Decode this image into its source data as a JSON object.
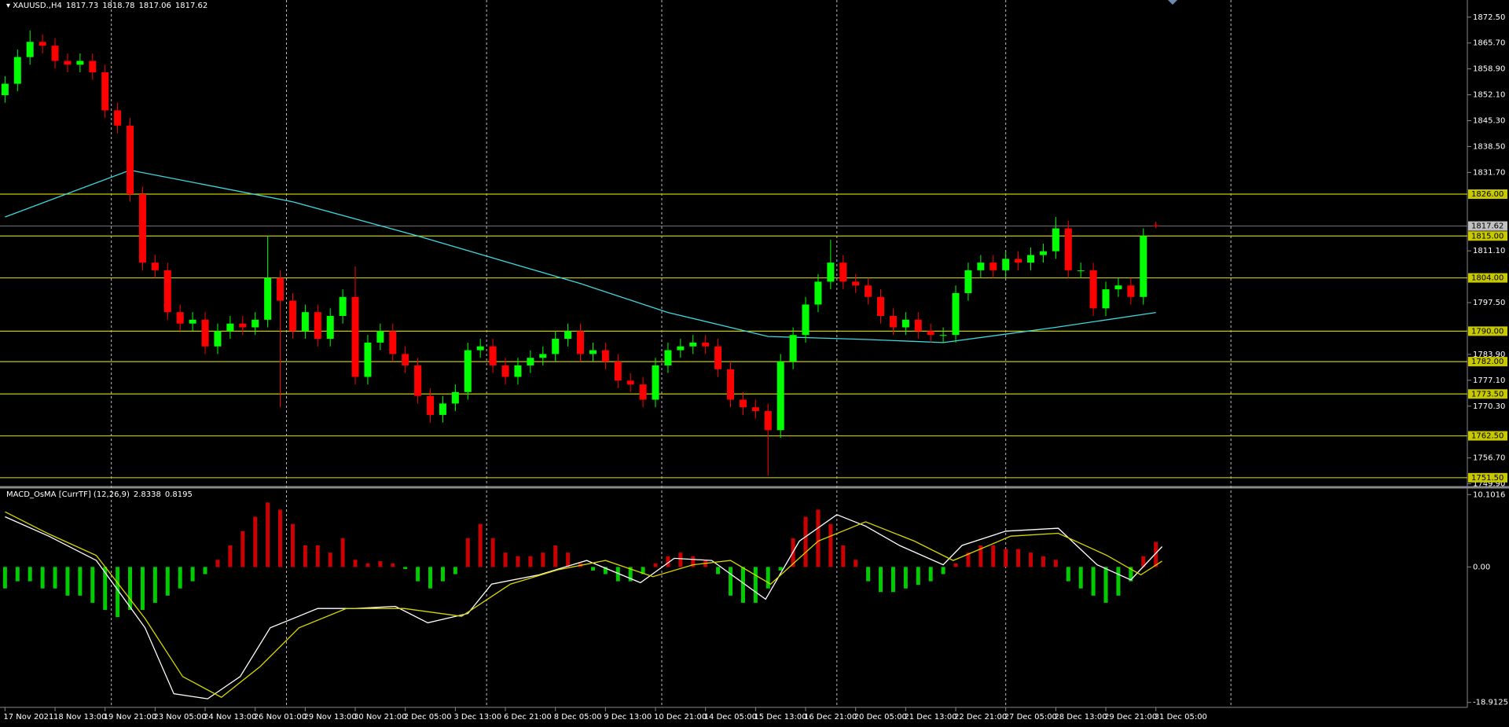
{
  "chart_data": [
    {
      "type": "candlestick",
      "title": "XAUUSD.,H4",
      "up_color": "#00ff00",
      "down_color": "#ff0000",
      "xlim": [
        -0.4,
        116.9
      ],
      "ylim": [
        1749.4,
        1877.0
      ],
      "vgrid": [
        8.5,
        22.5,
        38.5,
        52.5,
        66.5,
        80,
        98
      ],
      "xticks": [
        {
          "value": 0,
          "label": "17 Nov 2021"
        },
        {
          "value": 4,
          "label": "18 Nov 13:00"
        },
        {
          "value": 8,
          "label": "19 Nov 21:00"
        },
        {
          "value": 12,
          "label": "23 Nov 05:00"
        },
        {
          "value": 16,
          "label": "24 Nov 13:00"
        },
        {
          "value": 20,
          "label": "26 Nov 01:00"
        },
        {
          "value": 24,
          "label": "29 Nov 13:00"
        },
        {
          "value": 28,
          "label": "30 Nov 21:00"
        },
        {
          "value": 32,
          "label": "2 Dec 05:00"
        },
        {
          "value": 36,
          "label": "3 Dec 13:00"
        },
        {
          "value": 40,
          "label": "6 Dec 21:00"
        },
        {
          "value": 44,
          "label": "8 Dec 05:00"
        },
        {
          "value": 48,
          "label": "9 Dec 13:00"
        },
        {
          "value": 52,
          "label": "10 Dec 21:00"
        },
        {
          "value": 56,
          "label": "14 Dec 05:00"
        },
        {
          "value": 60,
          "label": "15 Dec 13:00"
        },
        {
          "value": 64,
          "label": "16 Dec 21:00"
        },
        {
          "value": 68,
          "label": "20 Dec 05:00"
        },
        {
          "value": 72,
          "label": "21 Dec 13:00"
        },
        {
          "value": 76,
          "label": "22 Dec 21:00"
        },
        {
          "value": 80,
          "label": "27 Dec 05:00"
        },
        {
          "value": 84,
          "label": "28 Dec 13:00"
        },
        {
          "value": 88,
          "label": "29 Dec 21:00"
        },
        {
          "value": 92,
          "label": "31 Dec 05:00"
        }
      ],
      "yticks": [
        {
          "value": 1872.5,
          "label": "1872.50"
        },
        {
          "value": 1865.7,
          "label": "1865.70"
        },
        {
          "value": 1858.9,
          "label": "1858.90"
        },
        {
          "value": 1852.1,
          "label": "1852.10"
        },
        {
          "value": 1845.3,
          "label": "1845.30"
        },
        {
          "value": 1838.5,
          "label": "1838.50"
        },
        {
          "value": 1831.7,
          "label": "1831.70"
        },
        {
          "value": 1811.1,
          "label": "1811.10"
        },
        {
          "value": 1797.5,
          "label": "1797.50"
        },
        {
          "value": 1783.9,
          "label": "1783.90"
        },
        {
          "value": 1777.1,
          "label": "1777.10"
        },
        {
          "value": 1770.3,
          "label": "1770.30"
        },
        {
          "value": 1756.7,
          "label": "1756.70"
        },
        {
          "value": 1749.9,
          "label": "1749.90"
        }
      ],
      "levels": [
        {
          "value": 1826,
          "label": "1826.00"
        },
        {
          "value": 1815,
          "label": "1815.00"
        },
        {
          "value": 1804,
          "label": "1804.00"
        },
        {
          "value": 1790,
          "label": "1790.00"
        },
        {
          "value": 1782,
          "label": "1782.00"
        },
        {
          "value": 1773.5,
          "label": "1773.50"
        },
        {
          "value": 1762.5,
          "label": "1762.50"
        },
        {
          "value": 1751.5,
          "label": "1751.50"
        }
      ],
      "level_color": "#c8c800",
      "open": [
        1852,
        1855,
        1862,
        1866,
        1865,
        1861,
        1860,
        1861,
        1858,
        1848,
        1844,
        1826,
        1808,
        1806,
        1795,
        1792,
        1793,
        1786,
        1790,
        1792,
        1791,
        1793,
        1804,
        1798,
        1790,
        1795,
        1788,
        1794,
        1799,
        1778,
        1787,
        1790,
        1784,
        1781,
        1773,
        1768,
        1771,
        1774,
        1785,
        1786,
        1781,
        1778,
        1781,
        1783,
        1784,
        1788,
        1790,
        1784,
        1785,
        1782,
        1777,
        1776,
        1772,
        1781,
        1785,
        1786,
        1787,
        1786,
        1780,
        1772,
        1770,
        1769,
        1764,
        1782,
        1789,
        1797,
        1803,
        1808,
        1803,
        1802,
        1799,
        1794,
        1791,
        1793,
        1790,
        1789,
        1789,
        1800,
        1806,
        1808,
        1806,
        1809,
        1808,
        1810,
        1811,
        1817,
        1806,
        1806,
        1796,
        1801,
        1802,
        1799,
        1817.73
      ],
      "high": [
        1857,
        1864,
        1869,
        1868,
        1867,
        1863,
        1863,
        1863,
        1860,
        1850,
        1846,
        1828,
        1810,
        1808,
        1797,
        1795,
        1795,
        1792,
        1794,
        1794,
        1795,
        1815,
        1806,
        1800,
        1797,
        1797,
        1796,
        1801,
        1807,
        1789,
        1792,
        1792,
        1786,
        1783,
        1775,
        1773,
        1776,
        1787,
        1788,
        1788,
        1783,
        1783,
        1785,
        1786,
        1790,
        1792,
        1792,
        1787,
        1787,
        1784,
        1779,
        1778,
        1783,
        1787,
        1788,
        1789,
        1789,
        1788,
        1782,
        1774,
        1772,
        1771,
        1784,
        1791,
        1799,
        1805,
        1814,
        1810,
        1805,
        1804,
        1801,
        1796,
        1795,
        1795,
        1792,
        1791,
        1802,
        1808,
        1810,
        1810,
        1811,
        1811,
        1812,
        1813,
        1820,
        1819,
        1808,
        1808,
        1803,
        1804,
        1804,
        1817,
        1818.78
      ],
      "low": [
        1850,
        1853,
        1860,
        1863,
        1859,
        1858,
        1858,
        1856,
        1846,
        1842,
        1824,
        1806,
        1804,
        1793,
        1790,
        1790,
        1784,
        1784,
        1788,
        1789,
        1789,
        1791,
        1770,
        1788,
        1788,
        1786,
        1786,
        1792,
        1776,
        1776,
        1785,
        1782,
        1779,
        1771,
        1766,
        1766,
        1769,
        1772,
        1783,
        1779,
        1776,
        1776,
        1779,
        1781,
        1782,
        1786,
        1782,
        1782,
        1780,
        1775,
        1774,
        1770,
        1770,
        1779,
        1783,
        1784,
        1784,
        1778,
        1770,
        1768,
        1767,
        1752,
        1762,
        1780,
        1787,
        1795,
        1801,
        1801,
        1800,
        1797,
        1792,
        1789,
        1789,
        1788,
        1787,
        1787,
        1787,
        1798,
        1804,
        1804,
        1804,
        1806,
        1806,
        1808,
        1809,
        1804,
        1804,
        1794,
        1794,
        1799,
        1797,
        1797,
        1817.06
      ],
      "close": [
        1855,
        1862,
        1866,
        1865,
        1861,
        1860,
        1861,
        1858,
        1848,
        1844,
        1826,
        1808,
        1806,
        1795,
        1792,
        1793,
        1786,
        1790,
        1792,
        1791,
        1793,
        1804,
        1798,
        1790,
        1795,
        1788,
        1794,
        1799,
        1778,
        1787,
        1790,
        1784,
        1781,
        1773,
        1768,
        1771,
        1774,
        1785,
        1786,
        1781,
        1778,
        1781,
        1783,
        1784,
        1788,
        1790,
        1784,
        1785,
        1782,
        1777,
        1776,
        1772,
        1781,
        1785,
        1786,
        1787,
        1786,
        1780,
        1772,
        1770,
        1769,
        1764,
        1782,
        1789,
        1797,
        1803,
        1808,
        1803,
        1802,
        1799,
        1794,
        1791,
        1793,
        1790,
        1789,
        1789,
        1800,
        1806,
        1808,
        1806,
        1809,
        1808,
        1810,
        1811,
        1817,
        1806,
        1806,
        1796,
        1801,
        1802,
        1799,
        1815,
        1817.62
      ],
      "ma": {
        "color": "#3ed8e0",
        "x": [
          0,
          10,
          23,
          33,
          46,
          53,
          61,
          69,
          75,
          84,
          92
        ],
        "values": [
          1820,
          1832.3,
          1824,
          1815,
          1802.5,
          1794.9,
          1788.6,
          1787.8,
          1787,
          1791,
          1794.9
        ]
      }
    },
    {
      "type": "macd",
      "title": "MACD_OsMA [CurrTF] (12,26,9)",
      "ylim": [
        -19.6,
        10.9
      ],
      "yticks": [
        10.1016,
        {
          "value": 0,
          "label": "0.00"
        },
        -18.9125
      ],
      "pos_color": "#cc0000",
      "neg_color": "#00cc00",
      "histogram": [
        -3,
        -2,
        -2,
        -3,
        -3,
        -4,
        -4,
        -5,
        -6,
        -7,
        -6,
        -6,
        -5,
        -4,
        -3,
        -2,
        -1,
        1,
        3,
        5,
        7,
        9,
        8,
        6,
        3,
        3,
        2,
        4,
        1,
        0.5,
        0.8,
        0.5,
        -0.3,
        -2,
        -3,
        -2,
        -1,
        4,
        6,
        4,
        2,
        1.5,
        1.5,
        2,
        3,
        2,
        0.5,
        -0.5,
        -1,
        -2,
        -2,
        -1,
        0.5,
        1.5,
        2,
        1.5,
        1,
        -1,
        -4,
        -5,
        -5,
        -3,
        -0.5,
        4,
        7,
        8,
        6,
        3,
        1,
        -2,
        -3.5,
        -3.5,
        -3,
        -2.5,
        -2,
        -1,
        0.5,
        2,
        3,
        3,
        2.5,
        2.5,
        2,
        1.5,
        1,
        -2,
        -3,
        -4,
        -5,
        -4,
        -2,
        1.5,
        3.5
      ],
      "main": {
        "color": "#ffffff",
        "x": [
          0,
          3.5,
          7.3,
          11.2,
          13.5,
          16.2,
          18.8,
          21.2,
          25,
          28,
          31.2,
          33.8,
          37,
          38.9,
          42.7,
          46.5,
          50.8,
          53.5,
          56.5,
          60.8,
          63.5,
          66.5,
          68.8,
          71.5,
          75,
          76.5,
          80,
          84.2,
          87.3,
          90,
          92.5
        ],
        "values": [
          7,
          4.3,
          0.9,
          -8.5,
          -17.7,
          -18.4,
          -15.3,
          -8.5,
          -5.8,
          -5.8,
          -5.5,
          -7.8,
          -6.5,
          -2.4,
          -1.1,
          0.9,
          -2.2,
          1.2,
          0.9,
          -4.5,
          3.6,
          7.3,
          5.7,
          3,
          0.3,
          3,
          5,
          5.4,
          0.3,
          -1.8,
          2.8338
        ]
      },
      "signal": {
        "color": "#d8d800",
        "x": [
          0,
          3.5,
          7.3,
          11.2,
          14.2,
          17.3,
          20.4,
          23.5,
          27.3,
          31.9,
          36.5,
          40.4,
          44.2,
          48,
          51.8,
          55,
          58,
          61.2,
          65,
          68.8,
          72.7,
          75.8,
          80.4,
          84.2,
          88.1,
          90.8,
          92.5
        ],
        "values": [
          7.7,
          4.6,
          1.6,
          -7.2,
          -15.3,
          -18.2,
          -13.9,
          -8.5,
          -5.8,
          -5.8,
          -6.9,
          -2.4,
          -0.4,
          0.9,
          -1.35,
          0.3,
          0.9,
          -2.4,
          3.6,
          6.3,
          3.6,
          0.9,
          4.3,
          4.7,
          1.6,
          -1.1,
          0.8195
        ]
      }
    }
  ]
}
